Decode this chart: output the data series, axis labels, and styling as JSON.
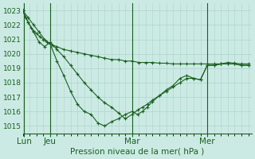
{
  "title": "Pression niveau de la mer( hPa )",
  "bg_color": "#cceae4",
  "grid_color": "#aad4cc",
  "line_color": "#1a6020",
  "ylim": [
    1014.5,
    1023.5
  ],
  "yticks": [
    1015,
    1016,
    1017,
    1018,
    1019,
    1020,
    1021,
    1022,
    1023
  ],
  "xtick_labels": [
    "Lun",
    "Jeu",
    "Mar",
    "Mer"
  ],
  "xtick_pos": [
    2,
    40,
    160,
    270
  ],
  "vline_pos": [
    2,
    40,
    160,
    270
  ],
  "xlim": [
    0,
    335
  ],
  "line1_x": [
    0,
    4,
    8,
    12,
    16,
    20,
    25,
    30,
    36,
    40,
    44,
    50,
    60,
    70,
    80,
    90,
    100,
    110,
    120,
    130,
    140,
    150,
    160,
    170,
    180,
    190,
    200,
    210,
    220,
    230,
    240,
    250,
    260,
    270,
    280,
    290,
    300,
    310,
    320,
    330
  ],
  "line1_y": [
    1023.0,
    1022.5,
    1022.2,
    1021.8,
    1021.6,
    1021.4,
    1021.2,
    1021.0,
    1020.8,
    1020.7,
    1020.6,
    1020.5,
    1020.3,
    1020.2,
    1020.1,
    1020.0,
    1019.9,
    1019.8,
    1019.7,
    1019.6,
    1019.6,
    1019.5,
    1019.5,
    1019.4,
    1019.4,
    1019.4,
    1019.35,
    1019.35,
    1019.3,
    1019.3,
    1019.3,
    1019.3,
    1019.3,
    1019.3,
    1019.3,
    1019.3,
    1019.4,
    1019.35,
    1019.3,
    1019.3
  ],
  "line2_x": [
    0,
    8,
    16,
    24,
    32,
    40,
    50,
    60,
    70,
    80,
    90,
    100,
    110,
    120,
    130,
    140,
    150,
    160,
    168,
    175,
    182,
    190,
    200,
    210,
    220,
    230,
    240,
    250,
    260,
    270,
    280,
    290,
    300,
    310,
    320,
    330
  ],
  "line2_y": [
    1023.0,
    1022.5,
    1022.0,
    1021.5,
    1021.0,
    1020.7,
    1019.5,
    1018.5,
    1017.4,
    1016.5,
    1016.0,
    1015.8,
    1015.2,
    1015.0,
    1015.3,
    1015.5,
    1015.8,
    1016.0,
    1015.8,
    1016.0,
    1016.3,
    1016.7,
    1017.1,
    1017.5,
    1017.8,
    1018.3,
    1018.5,
    1018.3,
    1018.2,
    1019.2,
    1019.2,
    1019.3,
    1019.3,
    1019.3,
    1019.2,
    1019.2
  ],
  "line3_x": [
    0,
    8,
    16,
    24,
    32,
    40,
    50,
    60,
    70,
    80,
    90,
    100,
    110,
    120,
    130,
    140,
    150,
    160,
    168,
    175,
    182,
    190,
    200,
    210,
    220,
    230,
    240,
    250,
    260,
    270,
    280,
    290,
    300,
    310,
    320,
    330
  ],
  "line3_y": [
    1023.0,
    1022.2,
    1021.5,
    1020.8,
    1020.5,
    1020.8,
    1020.3,
    1019.8,
    1019.2,
    1018.6,
    1018.0,
    1017.5,
    1017.0,
    1016.6,
    1016.3,
    1015.9,
    1015.5,
    1015.8,
    1016.1,
    1016.3,
    1016.5,
    1016.8,
    1017.1,
    1017.4,
    1017.7,
    1018.0,
    1018.3,
    1018.3,
    1018.2,
    1019.2,
    1019.2,
    1019.3,
    1019.3,
    1019.3,
    1019.2,
    1019.2
  ],
  "tick_fontsize": 6.5,
  "xlabel_fontsize": 7.5
}
